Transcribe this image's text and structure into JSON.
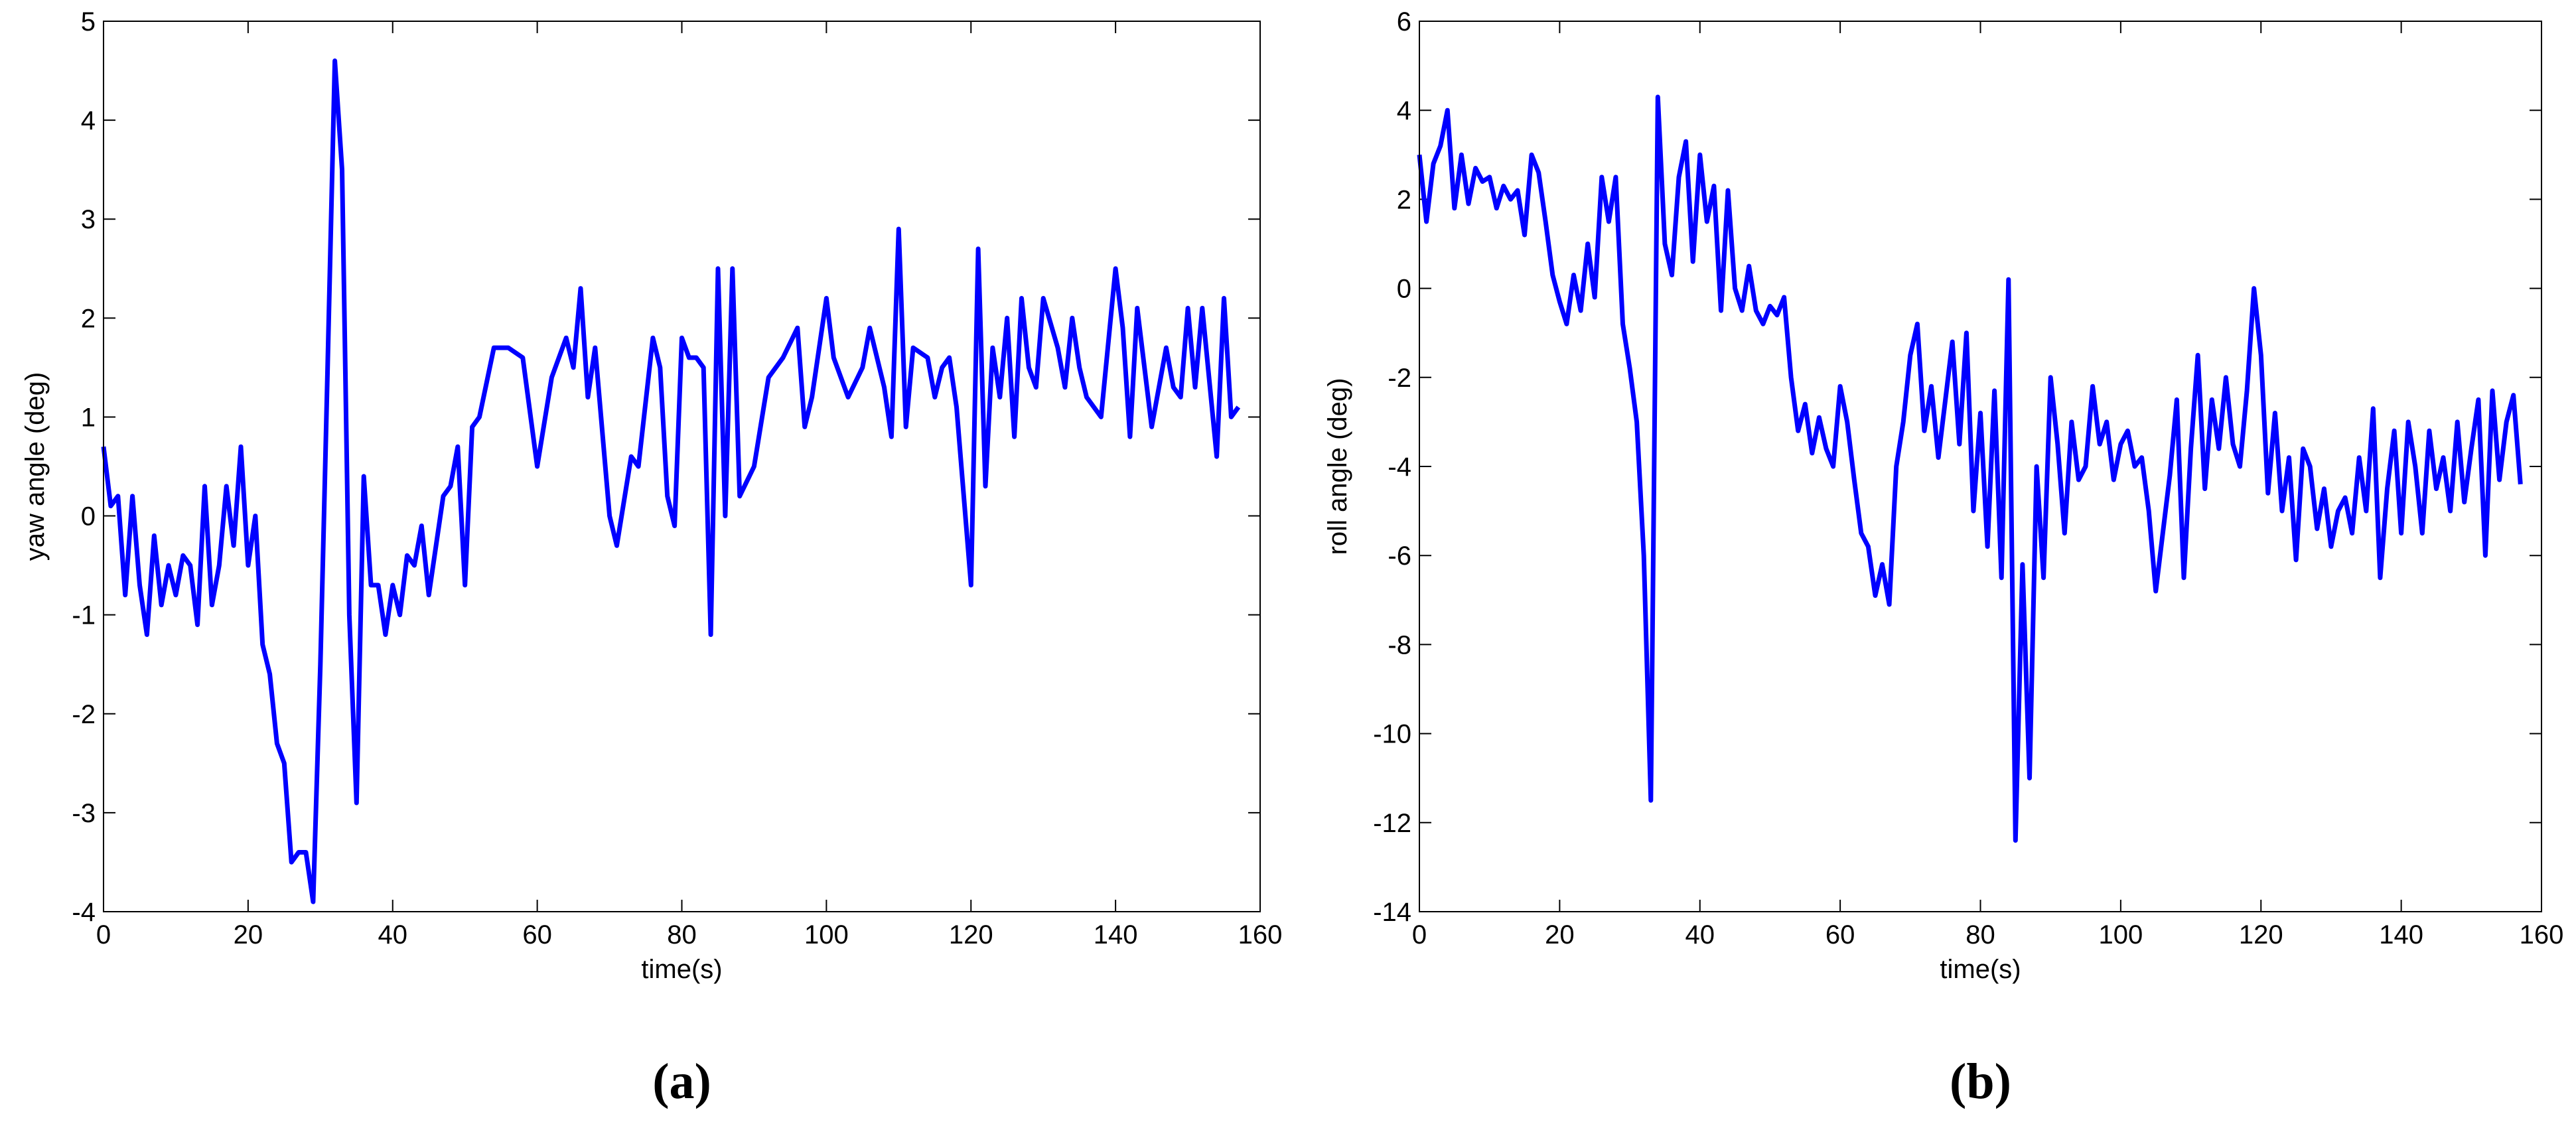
{
  "chart_data": [
    {
      "type": "line",
      "caption": "(a)",
      "xlabel": "time(s)",
      "ylabel": "yaw angle (deg)",
      "xlim": [
        0,
        160
      ],
      "xticks": [
        0,
        20,
        40,
        60,
        80,
        100,
        120,
        140,
        160
      ],
      "ylim": [
        -4,
        5
      ],
      "yticks": [
        -4,
        -3,
        -2,
        -1,
        0,
        1,
        2,
        3,
        4,
        5
      ],
      "series": [
        {
          "name": "yaw",
          "color": "#0000ff",
          "x": [
            0,
            1,
            2,
            3,
            4,
            5,
            6,
            7,
            8,
            9,
            10,
            11,
            12,
            13,
            14,
            15,
            16,
            17,
            18,
            19,
            20,
            21,
            22,
            23,
            24,
            25,
            26,
            27,
            28,
            29,
            30,
            31,
            32,
            33,
            34,
            35,
            36,
            37,
            38,
            39,
            40,
            41,
            42,
            43,
            44,
            45,
            46,
            47,
            48,
            49,
            50,
            51,
            52,
            54,
            56,
            58,
            60,
            62,
            64,
            65,
            66,
            67,
            68,
            70,
            71,
            73,
            74,
            76,
            77,
            78,
            79,
            80,
            81,
            82,
            83,
            84,
            85,
            86,
            87,
            88,
            90,
            92,
            94,
            96,
            97,
            98,
            100,
            101,
            103,
            105,
            106,
            108,
            109,
            110,
            111,
            112,
            114,
            115,
            116,
            117,
            118,
            120,
            121,
            122,
            123,
            124,
            125,
            126,
            127,
            128,
            129,
            130,
            132,
            133,
            134,
            135,
            136,
            138,
            140,
            141,
            142,
            143,
            144,
            145,
            147,
            148,
            149,
            150,
            151,
            152,
            154,
            155,
            156,
            157
          ],
          "values": [
            0.7,
            0.1,
            0.2,
            -0.8,
            0.2,
            -0.7,
            -1.2,
            -0.2,
            -0.9,
            -0.5,
            -0.8,
            -0.4,
            -0.5,
            -1.1,
            0.3,
            -0.9,
            -0.5,
            0.3,
            -0.3,
            0.7,
            -0.5,
            0.0,
            -1.3,
            -1.6,
            -2.3,
            -2.5,
            -3.5,
            -3.4,
            -3.4,
            -3.9,
            -1.5,
            1.5,
            4.6,
            3.5,
            -1.0,
            -2.9,
            0.4,
            -0.7,
            -0.7,
            -1.2,
            -0.7,
            -1.0,
            -0.4,
            -0.5,
            -0.1,
            -0.8,
            -0.3,
            0.2,
            0.3,
            0.7,
            -0.7,
            0.9,
            1.0,
            1.7,
            1.7,
            1.6,
            0.5,
            1.4,
            1.8,
            1.5,
            2.3,
            1.2,
            1.7,
            0.0,
            -0.3,
            0.6,
            0.5,
            1.8,
            1.5,
            0.2,
            -0.1,
            1.8,
            1.6,
            1.6,
            1.5,
            -1.2,
            2.5,
            0.0,
            2.5,
            0.2,
            0.5,
            1.4,
            1.6,
            1.9,
            0.9,
            1.2,
            2.2,
            1.6,
            1.2,
            1.5,
            1.9,
            1.3,
            0.8,
            2.9,
            0.9,
            1.7,
            1.6,
            1.2,
            1.5,
            1.6,
            1.1,
            -0.7,
            2.7,
            0.3,
            1.7,
            1.2,
            2.0,
            0.8,
            2.2,
            1.5,
            1.3,
            2.2,
            1.7,
            1.3,
            2.0,
            1.5,
            1.2,
            1.0,
            2.5,
            1.9,
            0.8,
            2.1,
            1.5,
            0.9,
            1.7,
            1.3,
            1.2,
            2.1,
            1.3,
            2.1,
            0.6,
            2.2,
            1.0,
            1.1
          ]
        }
      ]
    },
    {
      "type": "line",
      "caption": "(b)",
      "xlabel": "time(s)",
      "ylabel": "roll angle (deg)",
      "xlim": [
        0,
        160
      ],
      "xticks": [
        0,
        20,
        40,
        60,
        80,
        100,
        120,
        140,
        160
      ],
      "ylim": [
        -14,
        6
      ],
      "yticks": [
        -14,
        -12,
        -10,
        -8,
        -6,
        -4,
        -2,
        0,
        2,
        4,
        6
      ],
      "series": [
        {
          "name": "roll",
          "color": "#0000ff",
          "x": [
            0,
            1,
            2,
            3,
            4,
            5,
            6,
            7,
            8,
            9,
            10,
            11,
            12,
            13,
            14,
            15,
            16,
            17,
            18,
            19,
            20,
            21,
            22,
            23,
            24,
            25,
            26,
            27,
            28,
            29,
            30,
            31,
            32,
            33,
            34,
            35,
            36,
            37,
            38,
            39,
            40,
            41,
            42,
            43,
            44,
            45,
            46,
            47,
            48,
            49,
            50,
            51,
            52,
            53,
            54,
            55,
            56,
            57,
            58,
            59,
            60,
            61,
            62,
            63,
            64,
            65,
            66,
            67,
            68,
            69,
            70,
            71,
            72,
            73,
            74,
            75,
            76,
            77,
            78,
            79,
            80,
            81,
            82,
            83,
            84,
            85,
            86,
            87,
            88,
            89,
            90,
            91,
            92,
            93,
            94,
            95,
            96,
            97,
            98,
            99,
            100,
            101,
            102,
            103,
            104,
            105,
            106,
            107,
            108,
            109,
            110,
            111,
            112,
            113,
            114,
            115,
            116,
            117,
            118,
            119,
            120,
            121,
            122,
            123,
            124,
            125,
            126,
            127,
            128,
            129,
            130,
            131,
            132,
            133,
            134,
            135,
            136,
            137,
            138,
            139,
            140,
            141,
            142,
            143,
            144,
            145,
            146,
            147,
            148,
            149,
            150,
            151,
            152,
            153,
            154,
            155,
            156,
            157
          ],
          "values": [
            3.0,
            1.5,
            2.8,
            3.2,
            4.0,
            1.8,
            3.0,
            1.9,
            2.7,
            2.4,
            2.5,
            1.8,
            2.3,
            2.0,
            2.2,
            1.2,
            3.0,
            2.6,
            1.5,
            0.3,
            -0.3,
            -0.8,
            0.3,
            -0.5,
            1.0,
            -0.2,
            2.5,
            1.5,
            2.5,
            -0.8,
            -1.8,
            -3.0,
            -6.0,
            -11.5,
            4.3,
            1.0,
            0.3,
            2.5,
            3.3,
            0.6,
            3.0,
            1.5,
            2.3,
            -0.5,
            2.2,
            0.0,
            -0.5,
            0.5,
            -0.5,
            -0.8,
            -0.4,
            -0.6,
            -0.2,
            -2.0,
            -3.2,
            -2.6,
            -3.7,
            -2.9,
            -3.6,
            -4.0,
            -2.2,
            -3.0,
            -4.3,
            -5.5,
            -5.8,
            -6.9,
            -6.2,
            -7.1,
            -4.0,
            -3.0,
            -1.5,
            -0.8,
            -3.2,
            -2.2,
            -3.8,
            -2.5,
            -1.2,
            -3.5,
            -1.0,
            -5.0,
            -2.8,
            -5.8,
            -2.3,
            -6.5,
            0.2,
            -12.4,
            -6.2,
            -11.0,
            -4.0,
            -6.5,
            -2.0,
            -3.5,
            -5.5,
            -3.0,
            -4.3,
            -4.0,
            -2.2,
            -3.5,
            -3.0,
            -4.3,
            -3.5,
            -3.2,
            -4.0,
            -3.8,
            -5.0,
            -6.8,
            -5.5,
            -4.2,
            -2.5,
            -6.5,
            -3.6,
            -1.5,
            -4.5,
            -2.5,
            -3.6,
            -2.0,
            -3.5,
            -4.0,
            -2.3,
            0.0,
            -1.5,
            -4.6,
            -2.8,
            -5.0,
            -3.8,
            -6.1,
            -3.6,
            -4.0,
            -5.4,
            -4.5,
            -5.8,
            -5.0,
            -4.7,
            -5.5,
            -3.8,
            -5.0,
            -2.7,
            -6.5,
            -4.5,
            -3.2,
            -5.5,
            -3.0,
            -4.0,
            -5.5,
            -3.2,
            -4.5,
            -3.8,
            -5.0,
            -3.0,
            -4.8,
            -3.6,
            -2.5,
            -6.0,
            -2.3,
            -4.3,
            -3.0,
            -2.4,
            -4.4
          ]
        }
      ]
    }
  ]
}
